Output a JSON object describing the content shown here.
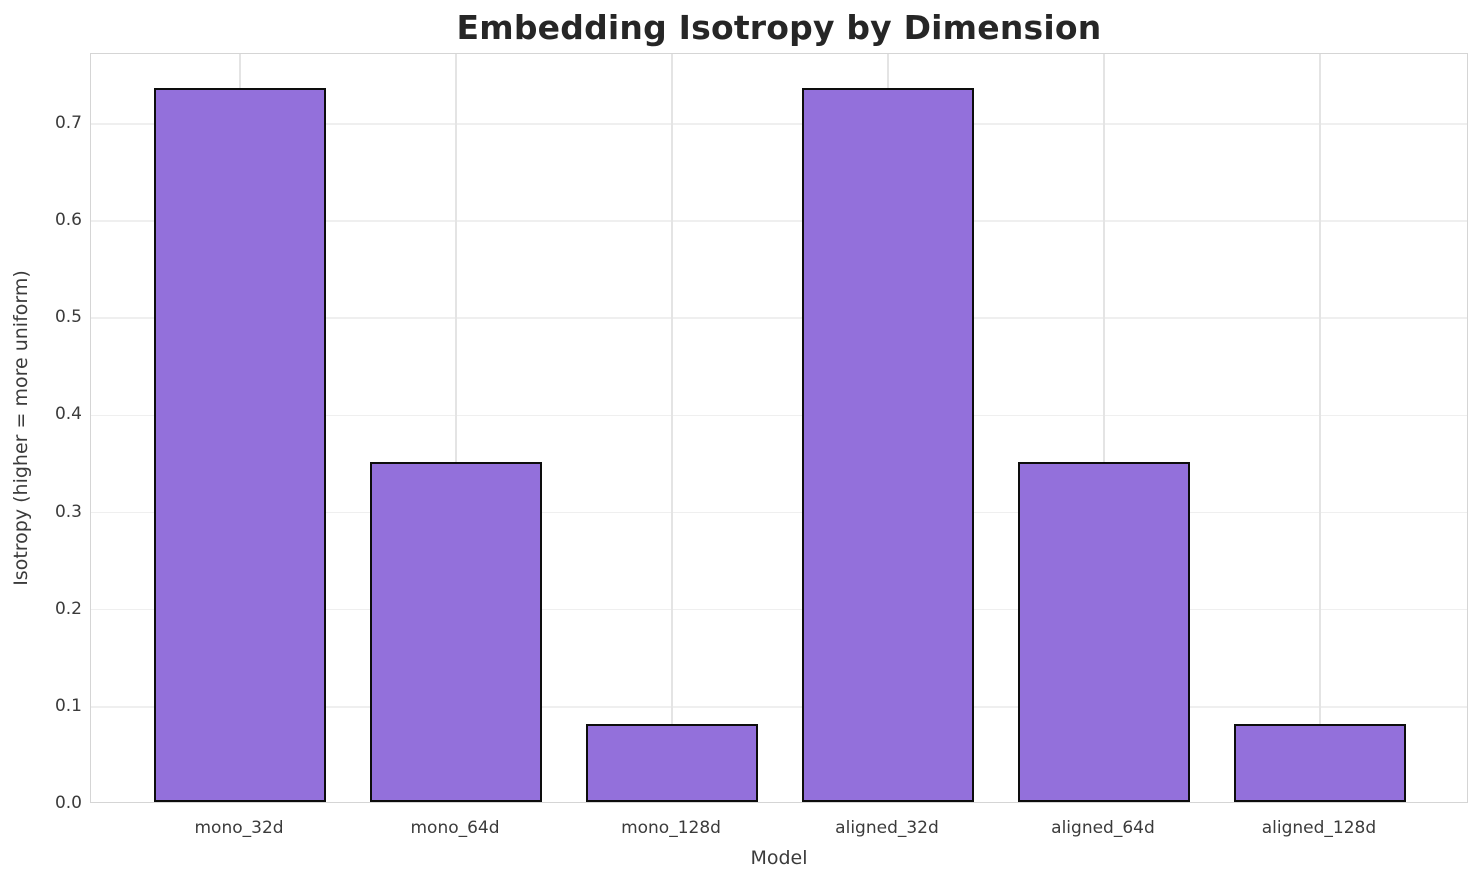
{
  "chart_data": {
    "type": "bar",
    "title": "Embedding Isotropy by Dimension",
    "xlabel": "Model",
    "ylabel": "Isotropy (higher = more uniform)",
    "categories": [
      "mono_32d",
      "mono_64d",
      "mono_128d",
      "aligned_32d",
      "aligned_64d",
      "aligned_128d"
    ],
    "values": [
      0.735,
      0.35,
      0.08,
      0.735,
      0.35,
      0.08
    ],
    "ylim": [
      0,
      0.772
    ],
    "ytick_values": [
      0.0,
      0.1,
      0.2,
      0.3,
      0.4,
      0.5,
      0.6,
      0.7
    ],
    "ytick_labels": [
      "0.0",
      "0.1",
      "0.2",
      "0.3",
      "0.4",
      "0.5",
      "0.6",
      "0.7"
    ],
    "grid": true,
    "legend": "none",
    "bar_color": "#9370DB",
    "bar_edge_color": "#0d0d0d",
    "bar_width_fraction": 0.8
  }
}
